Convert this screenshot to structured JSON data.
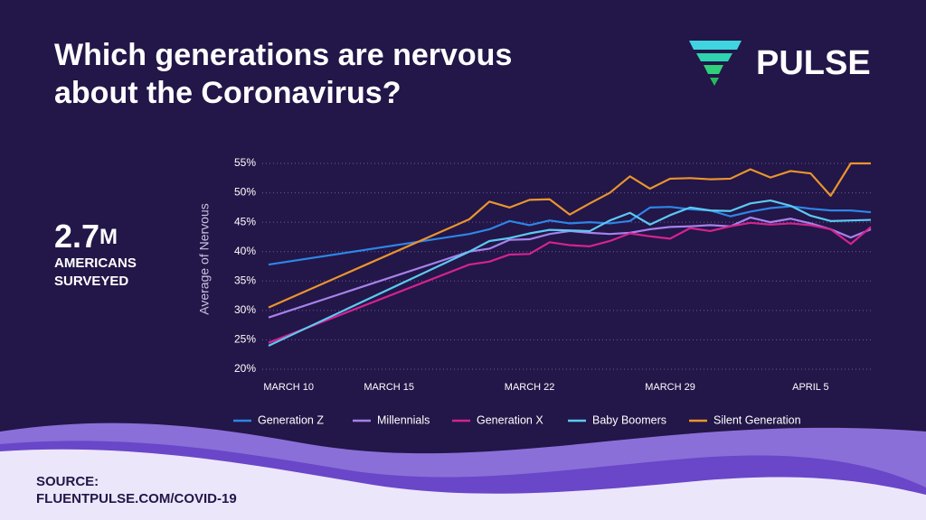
{
  "chart_data": {
    "type": "line",
    "title": "Which generations are nervous about the Coronavirus?",
    "brand": "PULSE",
    "callout": {
      "value": "2.7",
      "unit": "M",
      "label_lines": [
        "AMERICANS",
        "SURVEYED"
      ]
    },
    "source_lines": [
      "SOURCE:",
      "FLUENTPULSE.COM/COVID-19"
    ],
    "y_label": "Average of Nervous",
    "x": [
      "03-09",
      "03-19",
      "03-20",
      "03-21",
      "03-22",
      "03-23",
      "03-24",
      "03-25",
      "03-26",
      "03-27",
      "03-28",
      "03-29",
      "03-30",
      "03-31",
      "04-01",
      "04-02",
      "04-03",
      "04-04",
      "04-05",
      "04-06",
      "04-07",
      "04-08"
    ],
    "xlim": [
      "03-09",
      "04-08"
    ],
    "xticks": [
      {
        "value": "03-10",
        "label": "MARCH 10"
      },
      {
        "value": "03-15",
        "label": "MARCH 15"
      },
      {
        "value": "03-22",
        "label": "MARCH 22"
      },
      {
        "value": "03-29",
        "label": "MARCH 29"
      },
      {
        "value": "04-05",
        "label": "APRIL 5"
      }
    ],
    "ylim": [
      20,
      55
    ],
    "yticks": [
      {
        "value": 20,
        "label": "20%"
      },
      {
        "value": 25,
        "label": "25%"
      },
      {
        "value": 30,
        "label": "30%"
      },
      {
        "value": 35,
        "label": "35%"
      },
      {
        "value": 40,
        "label": "40%"
      },
      {
        "value": 45,
        "label": "45%"
      },
      {
        "value": 50,
        "label": "50%"
      },
      {
        "value": 55,
        "label": "55%"
      }
    ],
    "grid": true,
    "legend": "bottom",
    "series": [
      {
        "name": "Generation Z",
        "color": "#2d86e6",
        "values": [
          37.8,
          43.0,
          43.8,
          45.2,
          44.5,
          45.3,
          44.8,
          45.0,
          44.8,
          45.2,
          47.5,
          47.6,
          47.2,
          47.0,
          46.0,
          46.8,
          47.4,
          47.7,
          47.3,
          47.0,
          47.0,
          46.7
        ]
      },
      {
        "name": "Millennials",
        "color": "#a582ea",
        "values": [
          28.8,
          40.0,
          40.5,
          42.0,
          42.1,
          43.0,
          43.5,
          43.2,
          43.0,
          43.2,
          43.8,
          44.2,
          44.3,
          44.5,
          44.3,
          45.8,
          45.0,
          45.6,
          44.8,
          43.8,
          42.4,
          43.8
        ]
      },
      {
        "name": "Generation X",
        "color": "#d4238f",
        "values": [
          24.5,
          37.8,
          38.3,
          39.5,
          39.6,
          41.6,
          41.1,
          40.9,
          41.8,
          43.1,
          42.6,
          42.2,
          44.0,
          43.5,
          44.3,
          44.9,
          44.6,
          44.8,
          44.5,
          43.8,
          41.3,
          44.2
        ]
      },
      {
        "name": "Baby Boomers",
        "color": "#5cc9f2",
        "values": [
          24.0,
          40.0,
          41.8,
          42.3,
          43.1,
          43.7,
          43.6,
          43.5,
          45.3,
          46.6,
          44.6,
          46.2,
          47.5,
          47.0,
          46.9,
          48.2,
          48.7,
          47.8,
          46.1,
          45.2,
          45.3,
          45.4
        ]
      },
      {
        "name": "Silent Generation",
        "color": "#e9952e",
        "values": [
          30.5,
          45.5,
          48.5,
          47.5,
          48.8,
          48.9,
          46.3,
          48.2,
          50.0,
          52.8,
          50.7,
          52.4,
          52.5,
          52.3,
          52.4,
          54.0,
          52.6,
          53.7,
          53.3,
          49.5,
          55.0,
          55.0
        ]
      }
    ]
  }
}
